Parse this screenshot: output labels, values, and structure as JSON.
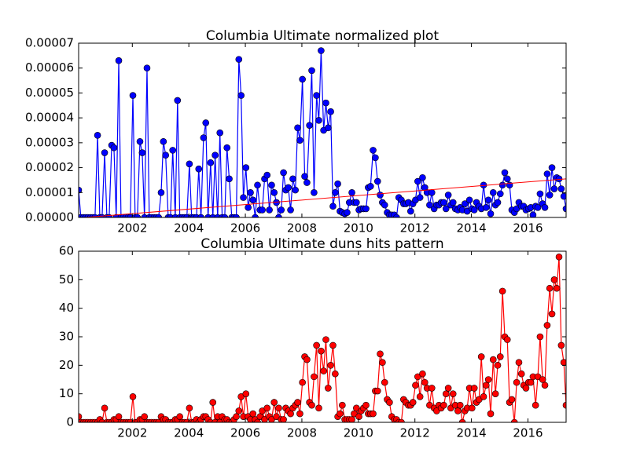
{
  "chart_data": [
    {
      "type": "line",
      "title": "Columbia Ultimate normalized plot",
      "x": [
        2000.1,
        2000.18,
        2000.27,
        2000.35,
        2000.43,
        2000.52,
        2000.6,
        2000.68,
        2000.77,
        2000.85,
        2000.93,
        2001.02,
        2001.1,
        2001.18,
        2001.27,
        2001.35,
        2001.43,
        2001.52,
        2001.6,
        2001.68,
        2001.77,
        2001.85,
        2001.93,
        2002.02,
        2002.1,
        2002.18,
        2002.27,
        2002.35,
        2002.43,
        2002.52,
        2002.6,
        2002.68,
        2002.77,
        2002.85,
        2002.93,
        2003.02,
        2003.1,
        2003.18,
        2003.27,
        2003.35,
        2003.43,
        2003.52,
        2003.6,
        2003.68,
        2003.77,
        2003.85,
        2003.93,
        2004.02,
        2004.1,
        2004.18,
        2004.27,
        2004.35,
        2004.43,
        2004.52,
        2004.6,
        2004.68,
        2004.77,
        2004.85,
        2004.93,
        2005.02,
        2005.1,
        2005.18,
        2005.27,
        2005.35,
        2005.43,
        2005.52,
        2005.6,
        2005.68,
        2005.77,
        2005.85,
        2005.93,
        2006.02,
        2006.1,
        2006.18,
        2006.27,
        2006.35,
        2006.43,
        2006.52,
        2006.6,
        2006.68,
        2006.77,
        2006.85,
        2006.93,
        2007.02,
        2007.1,
        2007.18,
        2007.27,
        2007.35,
        2007.43,
        2007.52,
        2007.6,
        2007.68,
        2007.77,
        2007.85,
        2007.93,
        2008.02,
        2008.1,
        2008.18,
        2008.27,
        2008.35,
        2008.43,
        2008.52,
        2008.6,
        2008.68,
        2008.77,
        2008.85,
        2008.93,
        2009.02,
        2009.1,
        2009.18,
        2009.27,
        2009.35,
        2009.43,
        2009.52,
        2009.6,
        2009.68,
        2009.77,
        2009.85,
        2009.93,
        2010.02,
        2010.1,
        2010.18,
        2010.27,
        2010.35,
        2010.43,
        2010.52,
        2010.6,
        2010.68,
        2010.77,
        2010.85,
        2010.93,
        2011.02,
        2011.1,
        2011.18,
        2011.27,
        2011.35,
        2011.43,
        2011.52,
        2011.6,
        2011.68,
        2011.77,
        2011.85,
        2011.93,
        2012.02,
        2012.1,
        2012.18,
        2012.27,
        2012.35,
        2012.43,
        2012.52,
        2012.6,
        2012.68,
        2012.77,
        2012.85,
        2012.93,
        2013.02,
        2013.1,
        2013.18,
        2013.27,
        2013.35,
        2013.43,
        2013.52,
        2013.6,
        2013.68,
        2013.77,
        2013.85,
        2013.93,
        2014.02,
        2014.1,
        2014.18,
        2014.27,
        2014.35,
        2014.43,
        2014.52,
        2014.6,
        2014.68,
        2014.77,
        2014.85,
        2014.93,
        2015.02,
        2015.1,
        2015.18,
        2015.27,
        2015.35,
        2015.43,
        2015.52,
        2015.6,
        2015.68,
        2015.77,
        2015.85,
        2015.93,
        2016.02,
        2016.1,
        2016.18,
        2016.27,
        2016.35,
        2016.43,
        2016.52,
        2016.6,
        2016.68,
        2016.77,
        2016.85,
        2016.93,
        2017.02,
        2017.1,
        2017.18,
        2017.27,
        2017.35
      ],
      "series": [
        {
          "color": "#0000ff",
          "values": [
            1.1e-05,
            0,
            0,
            0,
            0,
            0,
            0,
            0,
            3.3e-05,
            0,
            0,
            2.6e-05,
            0,
            0,
            2.9e-05,
            2.8e-05,
            0,
            6.3e-05,
            0,
            0,
            0,
            0,
            0,
            4.9e-05,
            0,
            0,
            3.05e-05,
            2.6e-05,
            0,
            6e-05,
            0,
            0,
            0,
            0,
            0,
            1e-05,
            3.05e-05,
            2.5e-05,
            0,
            0,
            2.7e-05,
            0,
            4.7e-05,
            0,
            0,
            0,
            0,
            2.15e-05,
            0,
            0,
            0,
            1.95e-05,
            0,
            3.2e-05,
            3.8e-05,
            0,
            2.2e-05,
            0,
            2.5e-05,
            0,
            3.4e-05,
            0,
            0,
            2.8e-05,
            1.55e-05,
            0,
            0,
            0,
            6.35e-05,
            4.9e-05,
            8e-06,
            2e-05,
            4e-06,
            1e-05,
            7e-06,
            0,
            1.3e-05,
            3e-06,
            3e-06,
            1.55e-05,
            1.7e-05,
            3e-06,
            1.3e-05,
            1e-05,
            6e-06,
            0,
            3e-06,
            1.8e-05,
            1.1e-05,
            1.2e-05,
            3e-06,
            1.55e-05,
            1.1e-05,
            3.6e-05,
            3.1e-05,
            5.55e-05,
            1.65e-05,
            1.4e-05,
            3.7e-05,
            5.9e-05,
            1e-05,
            4.9e-05,
            3.9e-05,
            6.7e-05,
            3.5e-05,
            4.6e-05,
            3.6e-05,
            4.25e-05,
            4.5e-06,
            1e-05,
            1.35e-05,
            2.5e-06,
            2e-06,
            1.5e-06,
            2e-06,
            6e-06,
            1e-05,
            6e-06,
            6e-06,
            3e-06,
            3.5e-06,
            3.5e-06,
            3.5e-06,
            1.2e-05,
            1.25e-05,
            2.7e-05,
            2.4e-05,
            1.45e-05,
            9e-06,
            6e-06,
            5e-06,
            2e-06,
            1e-06,
            1e-06,
            1e-06,
            0,
            8e-06,
            7e-06,
            5.5e-06,
            5.5e-06,
            6e-06,
            2.5e-06,
            5.5e-06,
            7e-06,
            1.45e-05,
            8e-06,
            1.6e-05,
            1.2e-05,
            1e-05,
            5e-06,
            1e-05,
            3.5e-06,
            5e-06,
            5e-06,
            6e-06,
            6e-06,
            3.5e-06,
            9e-06,
            5e-06,
            6e-06,
            3.5e-06,
            3e-06,
            4e-06,
            3e-06,
            5.5e-06,
            2.5e-06,
            7e-06,
            3.5e-06,
            3e-06,
            6e-06,
            4.5e-06,
            3.5e-06,
            1.3e-05,
            4e-06,
            7e-06,
            1.5e-06,
            1e-05,
            5e-06,
            6e-06,
            9.5e-06,
            1.3e-05,
            1.8e-05,
            1.55e-05,
            1.3e-05,
            3e-06,
            2e-06,
            3.5e-06,
            6e-06,
            4.5e-06,
            4.5e-06,
            3e-06,
            3.5e-06,
            4e-06,
            1e-06,
            4.5e-06,
            4e-06,
            9.5e-06,
            5.5e-06,
            4e-06,
            1.75e-05,
            9e-06,
            2e-05,
            1.15e-05,
            1.6e-05,
            1.55e-05,
            1.15e-05,
            8.5e-06,
            3.5e-06
          ]
        }
      ],
      "trend": {
        "color": "#ff0000",
        "x": [
          2000.1,
          2017.35
        ],
        "values": [
          -2e-07,
          1.55e-05
        ]
      },
      "xlim": [
        2000.1,
        2017.35
      ],
      "xticks": [
        2002,
        2004,
        2006,
        2008,
        2010,
        2012,
        2014,
        2016
      ],
      "ylim": [
        0,
        7e-05
      ],
      "yticks": [
        {
          "value": 0,
          "label": "0.00000"
        },
        {
          "value": 1e-05,
          "label": "0.00001"
        },
        {
          "value": 2e-05,
          "label": "0.00002"
        },
        {
          "value": 3e-05,
          "label": "0.00003"
        },
        {
          "value": 4e-05,
          "label": "0.00004"
        },
        {
          "value": 5e-05,
          "label": "0.00005"
        },
        {
          "value": 6e-05,
          "label": "0.00006"
        },
        {
          "value": 7e-05,
          "label": "0.00007"
        }
      ]
    },
    {
      "type": "line",
      "title": "Columbia Ultimate duns hits pattern",
      "x": [
        2000.1,
        2000.18,
        2000.27,
        2000.35,
        2000.43,
        2000.52,
        2000.6,
        2000.68,
        2000.77,
        2000.85,
        2000.93,
        2001.02,
        2001.1,
        2001.18,
        2001.27,
        2001.35,
        2001.43,
        2001.52,
        2001.6,
        2001.68,
        2001.77,
        2001.85,
        2001.93,
        2002.02,
        2002.1,
        2002.18,
        2002.27,
        2002.35,
        2002.43,
        2002.52,
        2002.6,
        2002.68,
        2002.77,
        2002.85,
        2002.93,
        2003.02,
        2003.1,
        2003.18,
        2003.27,
        2003.35,
        2003.43,
        2003.52,
        2003.6,
        2003.68,
        2003.77,
        2003.85,
        2003.93,
        2004.02,
        2004.1,
        2004.18,
        2004.27,
        2004.35,
        2004.43,
        2004.52,
        2004.6,
        2004.68,
        2004.77,
        2004.85,
        2004.93,
        2005.02,
        2005.1,
        2005.18,
        2005.27,
        2005.35,
        2005.43,
        2005.52,
        2005.6,
        2005.68,
        2005.77,
        2005.85,
        2005.93,
        2006.02,
        2006.1,
        2006.18,
        2006.27,
        2006.35,
        2006.43,
        2006.52,
        2006.6,
        2006.68,
        2006.77,
        2006.85,
        2006.93,
        2007.02,
        2007.1,
        2007.18,
        2007.27,
        2007.35,
        2007.43,
        2007.52,
        2007.6,
        2007.68,
        2007.77,
        2007.85,
        2007.93,
        2008.02,
        2008.1,
        2008.18,
        2008.27,
        2008.35,
        2008.43,
        2008.52,
        2008.6,
        2008.68,
        2008.77,
        2008.85,
        2008.93,
        2009.02,
        2009.1,
        2009.18,
        2009.27,
        2009.35,
        2009.43,
        2009.52,
        2009.6,
        2009.68,
        2009.77,
        2009.85,
        2009.93,
        2010.02,
        2010.1,
        2010.18,
        2010.27,
        2010.35,
        2010.43,
        2010.52,
        2010.6,
        2010.68,
        2010.77,
        2010.85,
        2010.93,
        2011.02,
        2011.1,
        2011.18,
        2011.27,
        2011.35,
        2011.43,
        2011.52,
        2011.6,
        2011.68,
        2011.77,
        2011.85,
        2011.93,
        2012.02,
        2012.1,
        2012.18,
        2012.27,
        2012.35,
        2012.43,
        2012.52,
        2012.6,
        2012.68,
        2012.77,
        2012.85,
        2012.93,
        2013.02,
        2013.1,
        2013.18,
        2013.27,
        2013.35,
        2013.43,
        2013.52,
        2013.6,
        2013.68,
        2013.77,
        2013.85,
        2013.93,
        2014.02,
        2014.1,
        2014.18,
        2014.27,
        2014.35,
        2014.43,
        2014.52,
        2014.6,
        2014.68,
        2014.77,
        2014.85,
        2014.93,
        2015.02,
        2015.1,
        2015.18,
        2015.27,
        2015.35,
        2015.43,
        2015.52,
        2015.6,
        2015.68,
        2015.77,
        2015.85,
        2015.93,
        2016.02,
        2016.1,
        2016.18,
        2016.27,
        2016.35,
        2016.43,
        2016.52,
        2016.6,
        2016.68,
        2016.77,
        2016.85,
        2016.93,
        2017.02,
        2017.1,
        2017.18,
        2017.27,
        2017.35
      ],
      "series": [
        {
          "color": "#ff0000",
          "values": [
            2,
            0,
            0,
            0,
            0,
            0,
            0,
            0,
            0,
            1,
            0,
            5,
            0,
            0,
            0,
            1,
            1,
            2,
            0,
            0,
            0,
            0,
            0,
            9,
            0,
            0,
            1,
            1,
            2,
            0,
            0,
            0,
            0,
            0,
            0,
            2,
            1,
            1,
            0,
            0,
            0,
            1,
            1,
            2,
            0,
            0,
            0,
            5,
            0,
            0,
            1,
            0,
            1,
            2,
            2,
            1,
            0,
            7,
            0,
            2,
            0,
            2,
            1,
            1,
            0,
            0,
            1,
            2,
            4,
            9,
            2,
            10,
            2,
            1,
            3,
            1,
            0,
            2,
            4,
            1,
            5,
            2,
            1,
            7,
            2,
            5,
            1,
            1,
            5,
            4,
            3,
            5,
            6,
            7,
            3,
            14,
            23,
            22,
            7,
            6,
            16,
            27,
            5,
            25,
            18,
            29,
            12,
            20,
            27,
            17,
            2,
            3,
            6,
            1,
            1,
            1,
            1,
            3,
            5,
            2,
            4,
            5,
            6,
            3,
            3,
            3,
            11,
            11,
            24,
            21,
            14,
            8,
            7,
            2,
            1,
            1,
            0,
            0,
            8,
            7,
            6,
            6,
            7,
            13,
            16,
            9,
            17,
            14,
            12,
            6,
            12,
            5,
            4,
            6,
            5,
            6,
            10,
            12,
            5,
            10,
            6,
            4,
            6,
            0,
            4,
            5,
            12,
            5,
            12,
            7,
            8,
            23,
            9,
            13,
            15,
            3,
            22,
            10,
            20,
            23,
            46,
            30,
            29,
            7,
            8,
            0,
            14,
            21,
            17,
            13,
            12,
            14,
            14,
            16,
            6,
            16,
            30,
            15,
            13,
            34,
            47,
            38,
            50,
            47,
            58,
            27,
            21,
            6
          ]
        }
      ],
      "xlim": [
        2000.1,
        2017.35
      ],
      "xticks": [
        2002,
        2004,
        2006,
        2008,
        2010,
        2012,
        2014,
        2016
      ],
      "ylim": [
        0,
        60
      ],
      "yticks": [
        0,
        10,
        20,
        30,
        40,
        50,
        60
      ]
    }
  ]
}
